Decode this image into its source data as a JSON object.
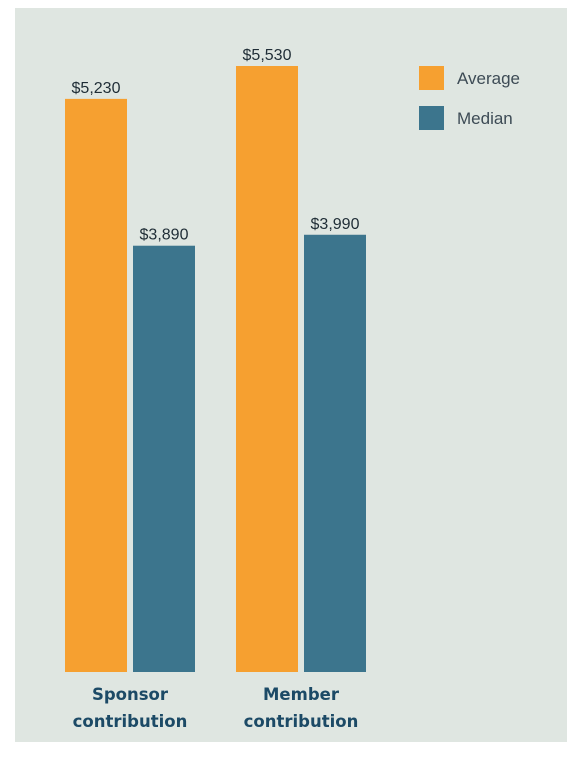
{
  "chart_data": {
    "type": "bar",
    "categories": [
      [
        "Sponsor",
        "contribution"
      ],
      [
        "Member",
        "contribution"
      ]
    ],
    "series": [
      {
        "name": "Average",
        "color": "#f6a030",
        "values": [
          5230,
          5530
        ],
        "labels": [
          "$5,230",
          "$5,530"
        ]
      },
      {
        "name": "Median",
        "color": "#3c758d",
        "values": [
          3890,
          3990
        ],
        "labels": [
          "$3,890",
          "$3,990"
        ]
      }
    ],
    "ylim": [
      0,
      5530
    ],
    "legend_position": "top-right",
    "grid": false,
    "title": "",
    "xlabel": "",
    "ylabel": ""
  },
  "colors": {
    "background": "#dfe6e1",
    "category_text": "#1c4a66",
    "value_text": "#1f2d36"
  }
}
